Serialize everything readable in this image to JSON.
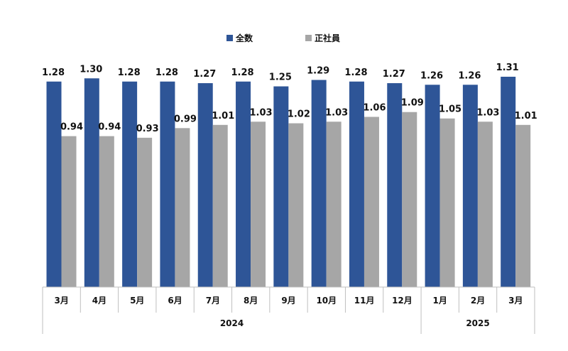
{
  "chart_data": {
    "type": "bar",
    "categories": [
      "3月",
      "4月",
      "5月",
      "6月",
      "7月",
      "8月",
      "9月",
      "10月",
      "11月",
      "12月",
      "1月",
      "2月",
      "3月"
    ],
    "groups": [
      {
        "label": "2024",
        "start": 0,
        "end": 9
      },
      {
        "label": "2025",
        "start": 10,
        "end": 12
      }
    ],
    "series": [
      {
        "name": "全数",
        "color": "#2e5597",
        "values": [
          1.28,
          1.3,
          1.28,
          1.28,
          1.27,
          1.28,
          1.25,
          1.29,
          1.28,
          1.27,
          1.26,
          1.26,
          1.31
        ]
      },
      {
        "name": "正社員",
        "color": "#a6a6a6",
        "values": [
          0.94,
          0.94,
          0.93,
          0.99,
          1.01,
          1.03,
          1.02,
          1.03,
          1.06,
          1.09,
          1.05,
          1.03,
          1.01
        ]
      }
    ],
    "ylim": [
      0,
      1.31
    ],
    "legend": "top-center",
    "grid": false
  }
}
